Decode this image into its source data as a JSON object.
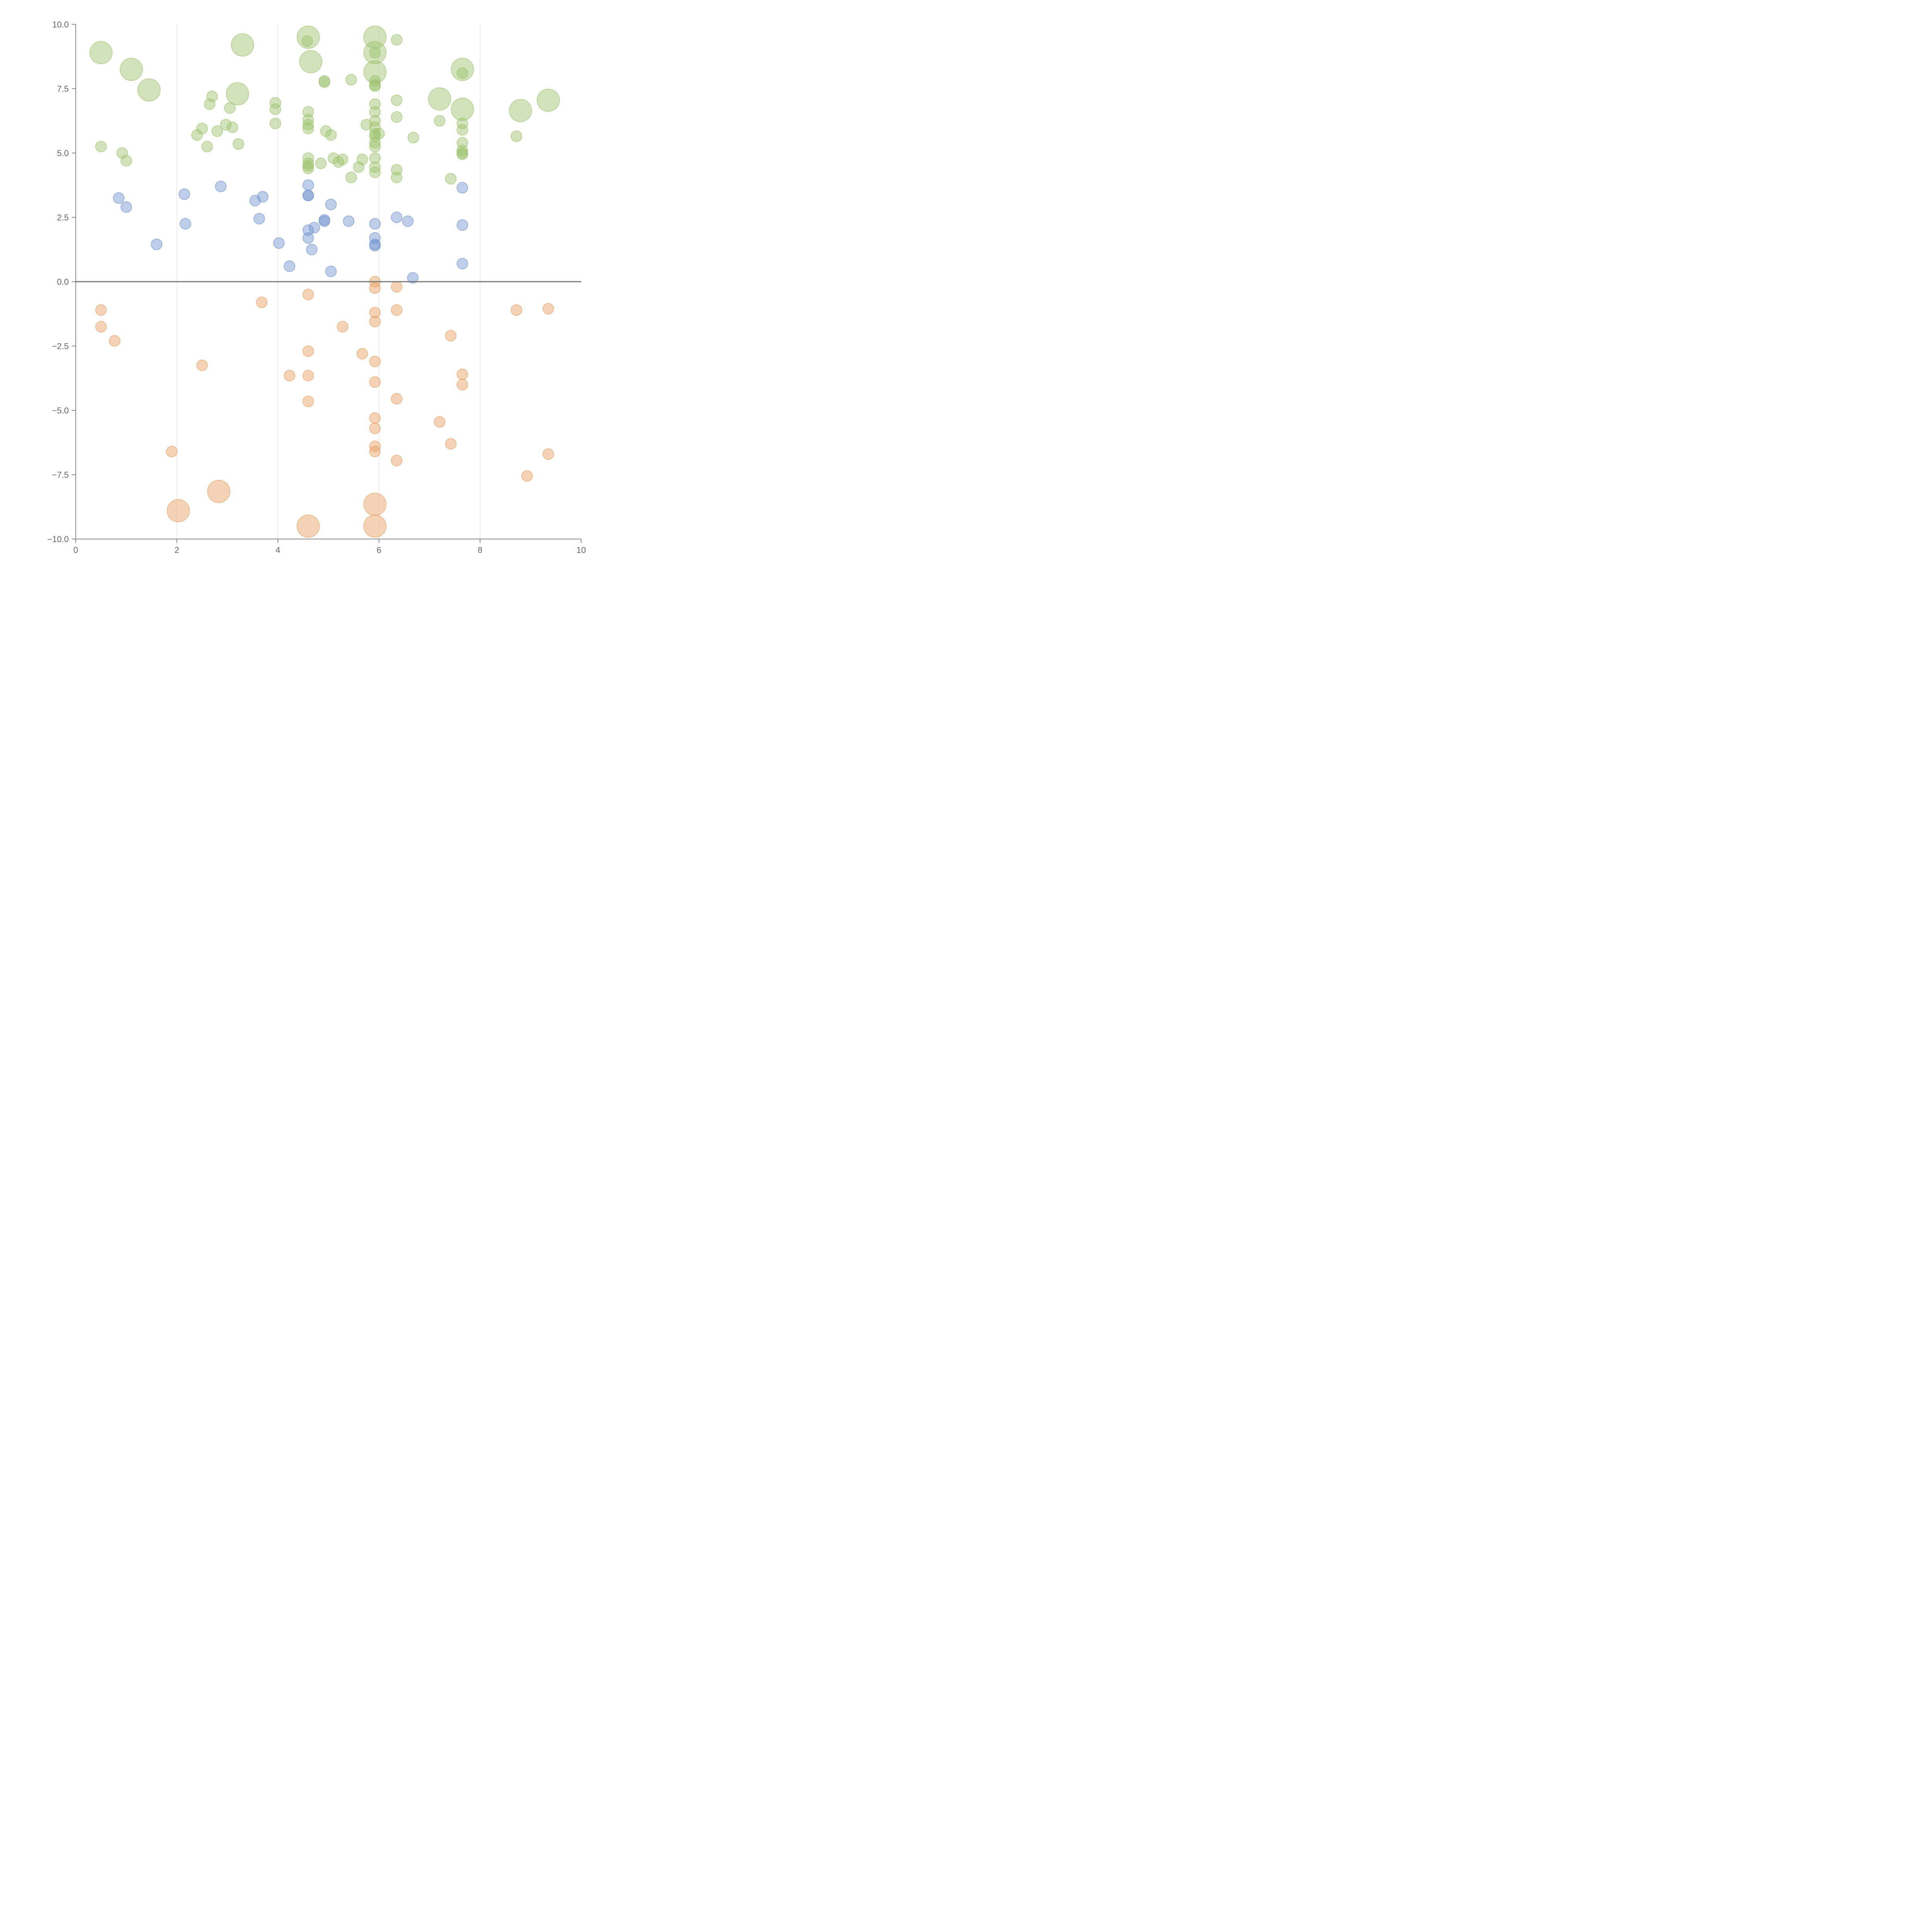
{
  "chart_data": {
    "type": "scatter",
    "title": "",
    "xlabel": "",
    "ylabel": "",
    "xlim": [
      0,
      10
    ],
    "ylim": [
      -10,
      10
    ],
    "x_ticks": [
      "0",
      "2",
      "4",
      "6",
      "8",
      "10"
    ],
    "x_tick_values": [
      0,
      2,
      4,
      6,
      8,
      10
    ],
    "y_ticks": [
      "10.0",
      "7.5",
      "5.0",
      "2.5",
      "0.0",
      "−2.5",
      "−5.0",
      "−7.5",
      "−10.0"
    ],
    "y_tick_values": [
      10,
      7.5,
      5,
      2.5,
      0,
      -2.5,
      -5,
      -7.5,
      -10
    ],
    "vertical_gridlines": [
      2,
      4,
      6,
      8
    ],
    "reference_line_y": 0,
    "colors": {
      "green": "#9cc26a",
      "blue": "#6f93cf",
      "orange": "#e79e5f"
    },
    "series": [
      {
        "name": "green",
        "color": "#9cc26a",
        "points": [
          {
            "x": 0.5,
            "y": 8.9,
            "size": 2
          },
          {
            "x": 1.1,
            "y": 8.25,
            "size": 2
          },
          {
            "x": 1.45,
            "y": 7.45,
            "size": 2
          },
          {
            "x": 3.3,
            "y": 9.2,
            "size": 2
          },
          {
            "x": 3.2,
            "y": 7.3,
            "size": 2
          },
          {
            "x": 4.6,
            "y": 9.5,
            "size": 2
          },
          {
            "x": 4.65,
            "y": 8.55,
            "size": 2
          },
          {
            "x": 5.92,
            "y": 9.5,
            "size": 2
          },
          {
            "x": 5.92,
            "y": 8.9,
            "size": 2
          },
          {
            "x": 5.92,
            "y": 8.15,
            "size": 2
          },
          {
            "x": 7.65,
            "y": 8.25,
            "size": 2
          },
          {
            "x": 7.65,
            "y": 6.7,
            "size": 2
          },
          {
            "x": 7.2,
            "y": 7.1,
            "size": 2
          },
          {
            "x": 8.8,
            "y": 6.65,
            "size": 2
          },
          {
            "x": 9.35,
            "y": 7.05,
            "size": 2
          },
          {
            "x": 0.5,
            "y": 5.25,
            "size": 1
          },
          {
            "x": 0.92,
            "y": 5.0,
            "size": 1
          },
          {
            "x": 1.0,
            "y": 4.7,
            "size": 1
          },
          {
            "x": 2.4,
            "y": 5.7,
            "size": 1
          },
          {
            "x": 2.5,
            "y": 5.95,
            "size": 1
          },
          {
            "x": 2.6,
            "y": 5.25,
            "size": 1
          },
          {
            "x": 2.65,
            "y": 6.9,
            "size": 1
          },
          {
            "x": 2.7,
            "y": 7.2,
            "size": 1
          },
          {
            "x": 2.8,
            "y": 5.85,
            "size": 1
          },
          {
            "x": 2.97,
            "y": 6.1,
            "size": 1
          },
          {
            "x": 3.05,
            "y": 6.75,
            "size": 1
          },
          {
            "x": 3.1,
            "y": 6.0,
            "size": 1
          },
          {
            "x": 3.22,
            "y": 5.35,
            "size": 1
          },
          {
            "x": 3.95,
            "y": 6.95,
            "size": 1
          },
          {
            "x": 3.95,
            "y": 6.7,
            "size": 1
          },
          {
            "x": 3.95,
            "y": 6.15,
            "size": 1
          },
          {
            "x": 4.58,
            "y": 9.35,
            "size": 1
          },
          {
            "x": 4.6,
            "y": 6.6,
            "size": 1
          },
          {
            "x": 4.6,
            "y": 6.3,
            "size": 1
          },
          {
            "x": 4.6,
            "y": 6.1,
            "size": 1
          },
          {
            "x": 4.6,
            "y": 5.95,
            "size": 1
          },
          {
            "x": 4.6,
            "y": 4.8,
            "size": 1
          },
          {
            "x": 4.6,
            "y": 4.6,
            "size": 1
          },
          {
            "x": 4.6,
            "y": 4.4,
            "size": 1
          },
          {
            "x": 4.6,
            "y": 4.5,
            "size": 1
          },
          {
            "x": 4.92,
            "y": 7.8,
            "size": 1
          },
          {
            "x": 4.92,
            "y": 7.75,
            "size": 1
          },
          {
            "x": 4.85,
            "y": 4.6,
            "size": 1
          },
          {
            "x": 4.95,
            "y": 5.85,
            "size": 1
          },
          {
            "x": 5.05,
            "y": 5.7,
            "size": 1
          },
          {
            "x": 5.1,
            "y": 4.8,
            "size": 1
          },
          {
            "x": 5.2,
            "y": 4.65,
            "size": 1
          },
          {
            "x": 5.28,
            "y": 4.75,
            "size": 1
          },
          {
            "x": 5.45,
            "y": 7.85,
            "size": 1
          },
          {
            "x": 5.45,
            "y": 4.05,
            "size": 1
          },
          {
            "x": 5.6,
            "y": 4.45,
            "size": 1
          },
          {
            "x": 5.67,
            "y": 4.75,
            "size": 1
          },
          {
            "x": 5.75,
            "y": 6.1,
            "size": 1
          },
          {
            "x": 5.92,
            "y": 8.9,
            "size": 1
          },
          {
            "x": 5.92,
            "y": 7.8,
            "size": 1
          },
          {
            "x": 5.92,
            "y": 7.65,
            "size": 1
          },
          {
            "x": 5.92,
            "y": 7.6,
            "size": 1
          },
          {
            "x": 5.92,
            "y": 6.9,
            "size": 1
          },
          {
            "x": 5.92,
            "y": 6.6,
            "size": 1
          },
          {
            "x": 5.92,
            "y": 6.25,
            "size": 1
          },
          {
            "x": 5.92,
            "y": 6.0,
            "size": 1
          },
          {
            "x": 5.92,
            "y": 5.75,
            "size": 1
          },
          {
            "x": 5.92,
            "y": 5.65,
            "size": 1
          },
          {
            "x": 5.92,
            "y": 5.4,
            "size": 1
          },
          {
            "x": 5.92,
            "y": 5.25,
            "size": 1
          },
          {
            "x": 5.92,
            "y": 4.8,
            "size": 1
          },
          {
            "x": 5.92,
            "y": 4.45,
            "size": 1
          },
          {
            "x": 5.92,
            "y": 4.25,
            "size": 1
          },
          {
            "x": 6.0,
            "y": 5.75,
            "size": 1
          },
          {
            "x": 6.35,
            "y": 9.4,
            "size": 1
          },
          {
            "x": 6.35,
            "y": 7.05,
            "size": 1
          },
          {
            "x": 6.35,
            "y": 6.4,
            "size": 1
          },
          {
            "x": 6.35,
            "y": 4.35,
            "size": 1
          },
          {
            "x": 6.35,
            "y": 4.05,
            "size": 1
          },
          {
            "x": 6.68,
            "y": 5.6,
            "size": 1
          },
          {
            "x": 7.2,
            "y": 6.25,
            "size": 1
          },
          {
            "x": 7.42,
            "y": 4.0,
            "size": 1
          },
          {
            "x": 7.65,
            "y": 8.1,
            "size": 1
          },
          {
            "x": 7.65,
            "y": 6.15,
            "size": 1
          },
          {
            "x": 7.65,
            "y": 5.9,
            "size": 1
          },
          {
            "x": 7.65,
            "y": 5.4,
            "size": 1
          },
          {
            "x": 7.65,
            "y": 5.1,
            "size": 1
          },
          {
            "x": 7.65,
            "y": 5.0,
            "size": 1
          },
          {
            "x": 7.65,
            "y": 4.95,
            "size": 1
          },
          {
            "x": 8.72,
            "y": 5.65,
            "size": 1
          }
        ]
      },
      {
        "name": "blue",
        "color": "#6f93cf",
        "points": [
          {
            "x": 0.85,
            "y": 3.25,
            "size": 1
          },
          {
            "x": 1.0,
            "y": 2.9,
            "size": 1
          },
          {
            "x": 1.6,
            "y": 1.45,
            "size": 1
          },
          {
            "x": 2.15,
            "y": 3.4,
            "size": 1
          },
          {
            "x": 2.17,
            "y": 2.25,
            "size": 1
          },
          {
            "x": 2.87,
            "y": 3.7,
            "size": 1
          },
          {
            "x": 3.55,
            "y": 3.15,
            "size": 1
          },
          {
            "x": 3.63,
            "y": 2.45,
            "size": 1
          },
          {
            "x": 3.7,
            "y": 3.3,
            "size": 1
          },
          {
            "x": 4.02,
            "y": 1.5,
            "size": 1
          },
          {
            "x": 4.23,
            "y": 0.6,
            "size": 1
          },
          {
            "x": 4.6,
            "y": 3.75,
            "size": 1
          },
          {
            "x": 4.6,
            "y": 3.35,
            "size": 1
          },
          {
            "x": 4.6,
            "y": 3.35,
            "size": 1
          },
          {
            "x": 4.6,
            "y": 2.0,
            "size": 1
          },
          {
            "x": 4.6,
            "y": 1.7,
            "size": 1
          },
          {
            "x": 4.67,
            "y": 1.25,
            "size": 1
          },
          {
            "x": 4.72,
            "y": 2.1,
            "size": 1
          },
          {
            "x": 4.92,
            "y": 2.4,
            "size": 1
          },
          {
            "x": 4.92,
            "y": 2.35,
            "size": 1
          },
          {
            "x": 5.05,
            "y": 3.0,
            "size": 1
          },
          {
            "x": 5.05,
            "y": 0.4,
            "size": 1
          },
          {
            "x": 5.4,
            "y": 2.35,
            "size": 1
          },
          {
            "x": 5.92,
            "y": 2.25,
            "size": 1
          },
          {
            "x": 5.92,
            "y": 1.7,
            "size": 1
          },
          {
            "x": 5.92,
            "y": 1.45,
            "size": 1
          },
          {
            "x": 5.92,
            "y": 1.4,
            "size": 1
          },
          {
            "x": 6.35,
            "y": 2.5,
            "size": 1
          },
          {
            "x": 6.57,
            "y": 2.35,
            "size": 1
          },
          {
            "x": 6.67,
            "y": 0.15,
            "size": 1
          },
          {
            "x": 7.65,
            "y": 3.65,
            "size": 1
          },
          {
            "x": 7.65,
            "y": 2.2,
            "size": 1
          },
          {
            "x": 7.65,
            "y": 0.7,
            "size": 1
          }
        ]
      },
      {
        "name": "orange",
        "color": "#e79e5f",
        "points": [
          {
            "x": 0.5,
            "y": -1.1,
            "size": 1
          },
          {
            "x": 0.5,
            "y": -1.75,
            "size": 1
          },
          {
            "x": 0.77,
            "y": -2.3,
            "size": 1
          },
          {
            "x": 1.9,
            "y": -6.6,
            "size": 1
          },
          {
            "x": 2.5,
            "y": -3.25,
            "size": 1
          },
          {
            "x": 2.03,
            "y": -8.9,
            "size": 2
          },
          {
            "x": 2.83,
            "y": -8.15,
            "size": 2
          },
          {
            "x": 3.68,
            "y": -0.8,
            "size": 1
          },
          {
            "x": 4.23,
            "y": -3.65,
            "size": 1
          },
          {
            "x": 4.6,
            "y": -0.5,
            "size": 1
          },
          {
            "x": 4.6,
            "y": -2.7,
            "size": 1
          },
          {
            "x": 4.6,
            "y": -3.65,
            "size": 1
          },
          {
            "x": 4.6,
            "y": -4.65,
            "size": 1
          },
          {
            "x": 4.6,
            "y": -9.5,
            "size": 2
          },
          {
            "x": 5.28,
            "y": -1.75,
            "size": 1
          },
          {
            "x": 5.67,
            "y": -2.8,
            "size": 1
          },
          {
            "x": 5.92,
            "y": 0.0,
            "size": 1
          },
          {
            "x": 5.92,
            "y": -0.25,
            "size": 1
          },
          {
            "x": 5.92,
            "y": -1.2,
            "size": 1
          },
          {
            "x": 5.92,
            "y": -1.55,
            "size": 1
          },
          {
            "x": 5.92,
            "y": -3.1,
            "size": 1
          },
          {
            "x": 5.92,
            "y": -3.9,
            "size": 1
          },
          {
            "x": 5.92,
            "y": -5.3,
            "size": 1
          },
          {
            "x": 5.92,
            "y": -5.7,
            "size": 1
          },
          {
            "x": 5.92,
            "y": -6.4,
            "size": 1
          },
          {
            "x": 5.92,
            "y": -6.6,
            "size": 1
          },
          {
            "x": 5.92,
            "y": -8.65,
            "size": 2
          },
          {
            "x": 5.92,
            "y": -9.5,
            "size": 2
          },
          {
            "x": 6.35,
            "y": -0.2,
            "size": 1
          },
          {
            "x": 6.35,
            "y": -1.1,
            "size": 1
          },
          {
            "x": 6.35,
            "y": -4.55,
            "size": 1
          },
          {
            "x": 6.35,
            "y": -6.95,
            "size": 1
          },
          {
            "x": 7.2,
            "y": -5.45,
            "size": 1
          },
          {
            "x": 7.42,
            "y": -2.1,
            "size": 1
          },
          {
            "x": 7.42,
            "y": -6.3,
            "size": 1
          },
          {
            "x": 7.65,
            "y": -3.6,
            "size": 1
          },
          {
            "x": 7.65,
            "y": -4.0,
            "size": 1
          },
          {
            "x": 8.72,
            "y": -1.1,
            "size": 1
          },
          {
            "x": 8.93,
            "y": -7.55,
            "size": 1
          },
          {
            "x": 9.35,
            "y": -1.05,
            "size": 1
          },
          {
            "x": 9.35,
            "y": -6.7,
            "size": 1
          }
        ]
      }
    ]
  }
}
